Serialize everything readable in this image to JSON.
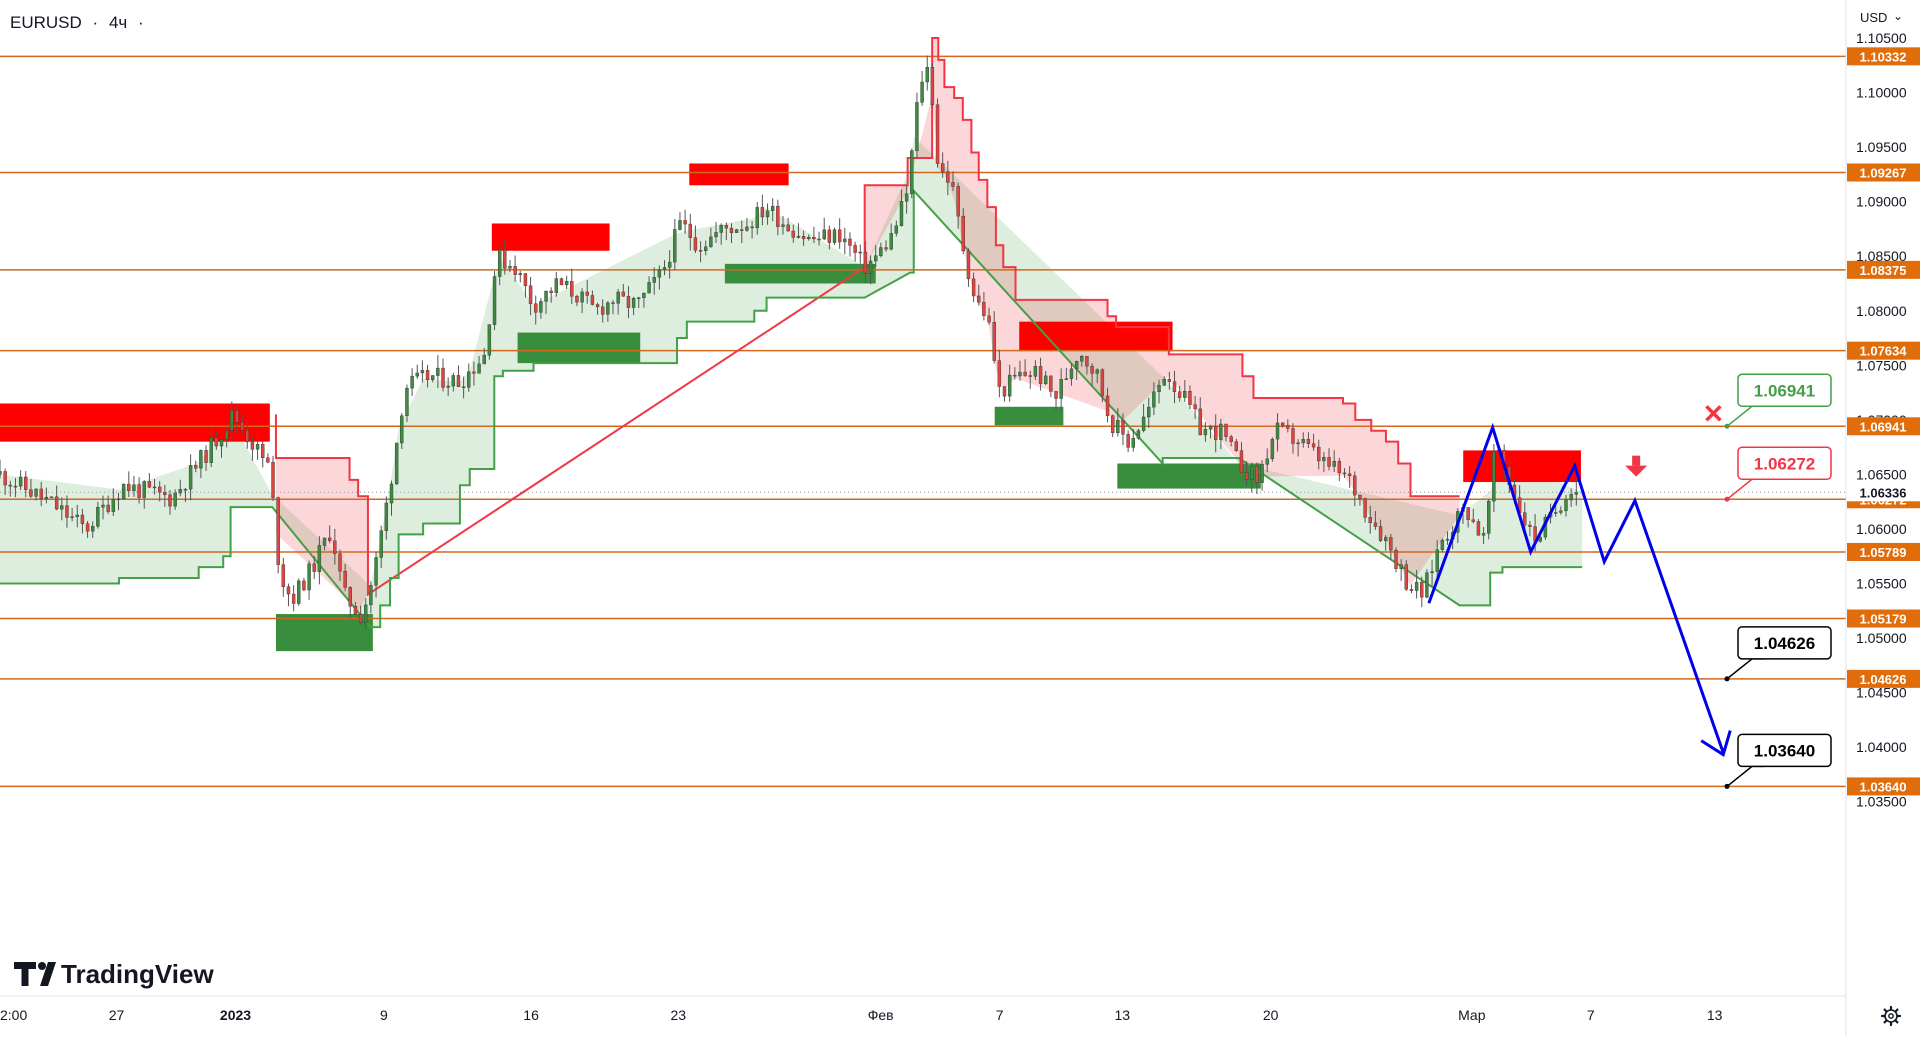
{
  "header": {
    "symbol": "EURUSD",
    "separator": "·",
    "timeframe": "4ч",
    "trailing": "·"
  },
  "price_axis": {
    "currency_label": "USD",
    "currency_caret": "⌄",
    "ticks": [
      "1.10500",
      "1.10000",
      "1.09500",
      "1.09000",
      "1.08500",
      "1.08000",
      "1.07500",
      "1.07000",
      "1.06500",
      "1.06000",
      "1.05500",
      "1.05000",
      "1.04500",
      "1.04000",
      "1.03500"
    ]
  },
  "time_axis": {
    "labels": [
      "2:00",
      "27",
      "2023",
      "9",
      "16",
      "23",
      "Фев",
      "7",
      "13",
      "20",
      "Мар",
      "7",
      "13"
    ]
  },
  "logo": {
    "text": "TradingView"
  },
  "settings_icon": "gear-icon",
  "chart_data": {
    "type": "line",
    "symbol": "EURUSD",
    "timeframe": "4ч",
    "ylim": [
      1.0335,
      1.106
    ],
    "xlim": [
      0,
      1500
    ],
    "price_ticks": [
      1.105,
      1.1,
      1.095,
      1.09,
      1.085,
      1.08,
      1.075,
      1.07,
      1.065,
      1.06,
      1.055,
      1.05,
      1.045,
      1.04,
      1.035
    ],
    "x_ticks": [
      {
        "label": "2:00",
        "x": 0
      },
      {
        "label": "27",
        "x": 95
      },
      {
        "label": "2023",
        "x": 192
      },
      {
        "label": "9",
        "x": 313
      },
      {
        "label": "16",
        "x": 433
      },
      {
        "label": "23",
        "x": 553
      },
      {
        "label": "Фев",
        "x": 718
      },
      {
        "label": "7",
        "x": 815
      },
      {
        "label": "13",
        "x": 915
      },
      {
        "label": "20",
        "x": 1036
      },
      {
        "label": "Мар",
        "x": 1200
      },
      {
        "label": "7",
        "x": 1297
      },
      {
        "label": "13",
        "x": 1398
      }
    ],
    "current_price": 1.06336,
    "levels": [
      1.10332,
      1.09267,
      1.08375,
      1.07634,
      1.06941,
      1.06272,
      1.05789,
      1.05179,
      1.04626,
      1.0364
    ],
    "level_color": "#d2691e",
    "callouts": [
      {
        "label": "1.06941",
        "price": 1.06941,
        "color": "#43a047"
      },
      {
        "label": "1.06272",
        "price": 1.06272,
        "color": "#f23645"
      },
      {
        "label": "1.04626",
        "price": 1.04626,
        "color": "#000000"
      },
      {
        "label": "1.03640",
        "price": 1.0364,
        "color": "#000000"
      }
    ],
    "close_series": [
      [
        0,
        1.065
      ],
      [
        40,
        1.0625
      ],
      [
        70,
        1.06
      ],
      [
        100,
        1.064
      ],
      [
        140,
        1.0628
      ],
      [
        175,
        1.068
      ],
      [
        190,
        1.0705
      ],
      [
        205,
        1.068
      ],
      [
        220,
        1.0655
      ],
      [
        228,
        1.056
      ],
      [
        238,
        1.0535
      ],
      [
        255,
        1.0565
      ],
      [
        270,
        1.06
      ],
      [
        280,
        1.054
      ],
      [
        295,
        1.052
      ],
      [
        305,
        1.056
      ],
      [
        318,
        1.064
      ],
      [
        330,
        1.073
      ],
      [
        350,
        1.074
      ],
      [
        375,
        1.0735
      ],
      [
        395,
        1.076
      ],
      [
        405,
        1.085
      ],
      [
        420,
        1.084
      ],
      [
        435,
        1.0805
      ],
      [
        455,
        1.0825
      ],
      [
        470,
        1.0815
      ],
      [
        485,
        1.08
      ],
      [
        500,
        1.081
      ],
      [
        520,
        1.0805
      ],
      [
        540,
        1.0835
      ],
      [
        555,
        1.088
      ],
      [
        570,
        1.086
      ],
      [
        590,
        1.0875
      ],
      [
        610,
        1.088
      ],
      [
        625,
        1.0895
      ],
      [
        640,
        1.088
      ],
      [
        660,
        1.0865
      ],
      [
        685,
        1.087
      ],
      [
        705,
        1.084
      ],
      [
        715,
        1.085
      ],
      [
        728,
        1.087
      ],
      [
        740,
        1.091
      ],
      [
        750,
        1.101
      ],
      [
        758,
        1.1025
      ],
      [
        765,
        1.093
      ],
      [
        775,
        1.092
      ],
      [
        785,
        1.086
      ],
      [
        795,
        1.081
      ],
      [
        805,
        1.0795
      ],
      [
        815,
        1.0725
      ],
      [
        830,
        1.074
      ],
      [
        845,
        1.0745
      ],
      [
        860,
        1.072
      ],
      [
        880,
        1.0765
      ],
      [
        895,
        1.074
      ],
      [
        905,
        1.07
      ],
      [
        920,
        1.068
      ],
      [
        935,
        1.0705
      ],
      [
        950,
        1.0745
      ],
      [
        965,
        1.072
      ],
      [
        980,
        1.069
      ],
      [
        995,
        1.069
      ],
      [
        1010,
        1.066
      ],
      [
        1025,
        1.0645
      ],
      [
        1040,
        1.069
      ],
      [
        1060,
        1.068
      ],
      [
        1080,
        1.066
      ],
      [
        1100,
        1.0645
      ],
      [
        1115,
        1.0615
      ],
      [
        1130,
        1.059
      ],
      [
        1148,
        1.055
      ],
      [
        1160,
        1.054
      ],
      [
        1175,
        1.059
      ],
      [
        1195,
        1.062
      ],
      [
        1210,
        1.059
      ],
      [
        1220,
        1.068
      ],
      [
        1235,
        1.063
      ],
      [
        1250,
        1.059
      ],
      [
        1265,
        1.061
      ],
      [
        1280,
        1.064
      ],
      [
        1288,
        1.0634
      ]
    ],
    "resistance_line": [
      [
        225,
        1.0705
      ],
      [
        225,
        1.0665
      ],
      [
        285,
        1.0665
      ],
      [
        285,
        1.0645
      ],
      [
        292,
        1.0645
      ],
      [
        292,
        1.063
      ],
      [
        300,
        1.063
      ],
      [
        300,
        1.054
      ],
      [
        705,
        1.084
      ],
      [
        705,
        1.0915
      ],
      [
        740,
        1.0915
      ],
      [
        740,
        1.094
      ],
      [
        760,
        1.094
      ],
      [
        760,
        1.105
      ],
      [
        765,
        1.105
      ],
      [
        765,
        1.103
      ],
      [
        770,
        1.103
      ],
      [
        770,
        1.1005
      ],
      [
        778,
        1.1005
      ],
      [
        778,
        1.0995
      ],
      [
        785,
        1.0995
      ],
      [
        785,
        1.0975
      ],
      [
        792,
        1.0975
      ],
      [
        792,
        1.0945
      ],
      [
        798,
        1.0945
      ],
      [
        798,
        1.092
      ],
      [
        805,
        1.092
      ],
      [
        805,
        1.0895
      ],
      [
        812,
        1.0895
      ],
      [
        812,
        1.086
      ],
      [
        818,
        1.086
      ],
      [
        818,
        1.084
      ],
      [
        828,
        1.084
      ],
      [
        828,
        1.081
      ],
      [
        903,
        1.081
      ],
      [
        903,
        1.0795
      ],
      [
        910,
        1.0795
      ],
      [
        910,
        1.0785
      ],
      [
        953,
        1.0785
      ],
      [
        953,
        1.076
      ],
      [
        1013,
        1.076
      ],
      [
        1013,
        1.074
      ],
      [
        1022,
        1.074
      ],
      [
        1022,
        1.072
      ],
      [
        1095,
        1.072
      ],
      [
        1095,
        1.0715
      ],
      [
        1105,
        1.0715
      ],
      [
        1105,
        1.07
      ],
      [
        1118,
        1.07
      ],
      [
        1118,
        1.069
      ],
      [
        1130,
        1.069
      ],
      [
        1130,
        1.068
      ],
      [
        1140,
        1.068
      ],
      [
        1140,
        1.066
      ],
      [
        1150,
        1.066
      ],
      [
        1150,
        1.063
      ],
      [
        1190,
        1.063
      ]
    ],
    "support_line": [
      [
        0,
        1.055
      ],
      [
        97,
        1.055
      ],
      [
        97,
        1.0555
      ],
      [
        162,
        1.0555
      ],
      [
        162,
        1.0565
      ],
      [
        182,
        1.0565
      ],
      [
        182,
        1.0575
      ],
      [
        188,
        1.0575
      ],
      [
        188,
        1.062
      ],
      [
        222,
        1.062
      ],
      [
        302,
        1.051
      ],
      [
        310,
        1.051
      ],
      [
        310,
        1.053
      ],
      [
        318,
        1.053
      ],
      [
        318,
        1.0555
      ],
      [
        325,
        1.0555
      ],
      [
        325,
        1.0595
      ],
      [
        345,
        1.0595
      ],
      [
        345,
        1.0605
      ],
      [
        375,
        1.0605
      ],
      [
        375,
        1.064
      ],
      [
        383,
        1.064
      ],
      [
        383,
        1.0655
      ],
      [
        403,
        1.0655
      ],
      [
        403,
        1.074
      ],
      [
        410,
        1.074
      ],
      [
        410,
        1.0745
      ],
      [
        435,
        1.0745
      ],
      [
        435,
        1.0752
      ],
      [
        552,
        1.0752
      ],
      [
        552,
        1.0775
      ],
      [
        560,
        1.0775
      ],
      [
        560,
        1.079
      ],
      [
        615,
        1.079
      ],
      [
        615,
        1.08
      ],
      [
        625,
        1.08
      ],
      [
        625,
        1.0812
      ],
      [
        705,
        1.0812
      ],
      [
        742,
        1.0835
      ],
      [
        745,
        1.0835
      ],
      [
        745,
        1.091
      ],
      [
        948,
        1.066
      ],
      [
        948,
        1.0665
      ],
      [
        1010,
        1.0665
      ],
      [
        1190,
        1.053
      ],
      [
        1215,
        1.053
      ],
      [
        1215,
        1.056
      ],
      [
        1225,
        1.056
      ],
      [
        1225,
        1.0565
      ],
      [
        1290,
        1.0565
      ]
    ],
    "supply_zones": [
      {
        "x0": 0,
        "x1": 220,
        "top": 1.0715,
        "bottom": 1.068
      },
      {
        "x0": 401,
        "x1": 497,
        "top": 1.088,
        "bottom": 1.0855
      },
      {
        "x0": 562,
        "x1": 643,
        "top": 1.0935,
        "bottom": 1.0915
      },
      {
        "x0": 831,
        "x1": 956,
        "top": 1.079,
        "bottom": 1.0763
      },
      {
        "x0": 1193,
        "x1": 1289,
        "top": 1.0672,
        "bottom": 1.0643
      }
    ],
    "demand_zones": [
      {
        "x0": 225,
        "x1": 304,
        "top": 1.0522,
        "bottom": 1.0488
      },
      {
        "x0": 422,
        "x1": 522,
        "top": 1.078,
        "bottom": 1.0752
      },
      {
        "x0": 591,
        "x1": 714,
        "top": 1.0843,
        "bottom": 1.0825
      },
      {
        "x0": 811,
        "x1": 867,
        "top": 1.0712,
        "bottom": 1.0695
      },
      {
        "x0": 911,
        "x1": 1028,
        "top": 1.066,
        "bottom": 1.0637
      }
    ],
    "forecast_path": [
      [
        1165,
        1.0532
      ],
      [
        1217,
        1.0693
      ],
      [
        1248,
        1.0579
      ],
      [
        1284,
        1.0658
      ],
      [
        1308,
        1.057
      ],
      [
        1333,
        1.0626
      ],
      [
        1405,
        1.0395
      ]
    ],
    "invalidation_marker": {
      "x": 1397,
      "price": 1.0706
    },
    "sell_arrow": {
      "x": 1334,
      "price": 1.0647
    }
  }
}
